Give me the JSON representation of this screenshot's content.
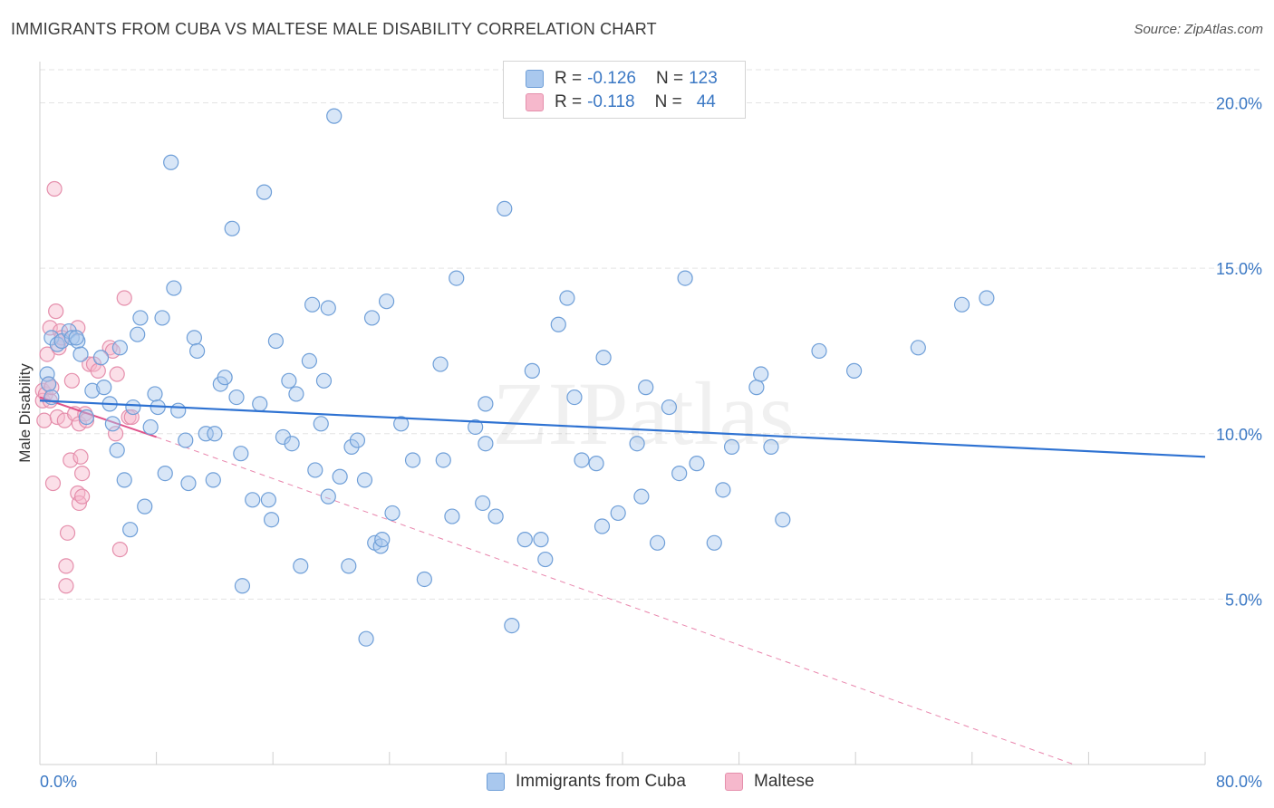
{
  "title": "IMMIGRANTS FROM CUBA VS MALTESE MALE DISABILITY CORRELATION CHART",
  "source": "Source: ZipAtlas.com",
  "watermark": "ZIPatlas",
  "legend_top": [
    {
      "r_label": "R =",
      "r_value": "-0.126",
      "n_label": "N =",
      "n_value": "123"
    },
    {
      "r_label": "R =",
      "r_value": "-0.118",
      "n_label": "N =",
      "n_value": "44"
    }
  ],
  "x_tick_labels": {
    "left": "0.0%",
    "right": "80.0%"
  },
  "colors": {
    "cuba_fill": "#a9c8ee",
    "cuba_stroke": "#6f9fd8",
    "cuba_line": "#2e72d2",
    "maltese_fill": "#f6b8cc",
    "maltese_stroke": "#e58fac",
    "maltese_line": "#e0528a",
    "axis_text": "#3b78c4",
    "grid": "#e3e3e3"
  },
  "chart_data": {
    "type": "scatter",
    "title": "IMMIGRANTS FROM CUBA VS MALTESE MALE DISABILITY CORRELATION CHART",
    "xlabel": "",
    "ylabel": "Male Disability",
    "xlim": [
      0,
      80
    ],
    "ylim": [
      0,
      21
    ],
    "y_ticks": [
      5,
      10,
      15,
      20
    ],
    "y_tick_labels": [
      "5.0%",
      "10.0%",
      "15.0%",
      "20.0%"
    ],
    "x_tick_labels": [
      "0.0%",
      "80.0%"
    ],
    "grid": "horizontal dashed",
    "legend_placement": "top-center and bottom",
    "series": [
      {
        "name": "Immigrants from Cuba",
        "r": -0.126,
        "n": 123,
        "trend": {
          "x": [
            0,
            80
          ],
          "y": [
            11.0,
            9.3
          ],
          "style": "solid"
        },
        "points": [
          [
            0.5,
            11.8
          ],
          [
            0.6,
            11.5
          ],
          [
            0.8,
            12.9
          ],
          [
            0.8,
            11.1
          ],
          [
            1.2,
            12.7
          ],
          [
            1.5,
            12.8
          ],
          [
            2.0,
            13.1
          ],
          [
            2.2,
            12.9
          ],
          [
            2.6,
            12.8
          ],
          [
            2.8,
            12.4
          ],
          [
            3.2,
            10.5
          ],
          [
            3.6,
            11.3
          ],
          [
            4.2,
            12.3
          ],
          [
            4.4,
            11.4
          ],
          [
            4.8,
            10.9
          ],
          [
            5.0,
            10.3
          ],
          [
            5.5,
            12.6
          ],
          [
            5.3,
            9.5
          ],
          [
            5.8,
            8.6
          ],
          [
            6.2,
            7.1
          ],
          [
            6.4,
            10.8
          ],
          [
            6.7,
            13.0
          ],
          [
            6.9,
            13.5
          ],
          [
            7.2,
            7.8
          ],
          [
            7.6,
            10.2
          ],
          [
            7.9,
            11.2
          ],
          [
            8.1,
            10.8
          ],
          [
            8.4,
            13.5
          ],
          [
            8.6,
            8.8
          ],
          [
            9.0,
            18.2
          ],
          [
            9.2,
            14.4
          ],
          [
            9.5,
            10.7
          ],
          [
            10.0,
            9.8
          ],
          [
            10.2,
            8.5
          ],
          [
            10.6,
            12.9
          ],
          [
            10.8,
            12.5
          ],
          [
            11.4,
            10.0
          ],
          [
            11.9,
            8.6
          ],
          [
            12.0,
            10.0
          ],
          [
            12.4,
            11.5
          ],
          [
            12.7,
            11.7
          ],
          [
            13.2,
            16.2
          ],
          [
            13.5,
            11.1
          ],
          [
            13.9,
            5.4
          ],
          [
            13.8,
            9.4
          ],
          [
            14.6,
            8.0
          ],
          [
            15.1,
            10.9
          ],
          [
            15.4,
            17.3
          ],
          [
            15.7,
            8.0
          ],
          [
            15.9,
            7.4
          ],
          [
            16.2,
            12.8
          ],
          [
            16.7,
            9.9
          ],
          [
            17.1,
            11.6
          ],
          [
            17.3,
            9.7
          ],
          [
            17.6,
            11.2
          ],
          [
            17.9,
            6.0
          ],
          [
            18.5,
            12.2
          ],
          [
            18.7,
            13.9
          ],
          [
            18.9,
            8.9
          ],
          [
            19.3,
            10.3
          ],
          [
            19.5,
            11.6
          ],
          [
            19.8,
            13.8
          ],
          [
            19.8,
            8.1
          ],
          [
            20.6,
            8.7
          ],
          [
            21.2,
            6.0
          ],
          [
            20.2,
            19.6
          ],
          [
            21.4,
            9.6
          ],
          [
            21.8,
            9.8
          ],
          [
            22.3,
            8.6
          ],
          [
            22.4,
            3.8
          ],
          [
            22.8,
            13.5
          ],
          [
            23.0,
            6.7
          ],
          [
            23.4,
            6.6
          ],
          [
            23.5,
            6.8
          ],
          [
            23.8,
            14.0
          ],
          [
            24.2,
            7.6
          ],
          [
            24.8,
            10.3
          ],
          [
            25.6,
            9.2
          ],
          [
            26.4,
            5.6
          ],
          [
            27.5,
            12.1
          ],
          [
            27.7,
            9.2
          ],
          [
            28.3,
            7.5
          ],
          [
            28.6,
            14.7
          ],
          [
            29.9,
            10.2
          ],
          [
            30.4,
            7.9
          ],
          [
            30.6,
            10.9
          ],
          [
            30.6,
            9.7
          ],
          [
            31.3,
            7.5
          ],
          [
            31.9,
            16.8
          ],
          [
            32.4,
            4.2
          ],
          [
            33.3,
            6.8
          ],
          [
            33.8,
            11.9
          ],
          [
            34.4,
            6.8
          ],
          [
            34.7,
            6.2
          ],
          [
            35.6,
            13.3
          ],
          [
            36.2,
            14.1
          ],
          [
            36.7,
            11.1
          ],
          [
            37.2,
            9.2
          ],
          [
            38.2,
            9.1
          ],
          [
            38.7,
            12.3
          ],
          [
            38.6,
            7.2
          ],
          [
            39.7,
            7.6
          ],
          [
            41.0,
            9.7
          ],
          [
            41.3,
            8.1
          ],
          [
            41.6,
            11.4
          ],
          [
            42.4,
            6.7
          ],
          [
            43.2,
            10.8
          ],
          [
            43.9,
            8.8
          ],
          [
            44.3,
            14.7
          ],
          [
            45.1,
            9.1
          ],
          [
            46.3,
            6.7
          ],
          [
            46.9,
            8.3
          ],
          [
            47.5,
            9.6
          ],
          [
            49.2,
            11.4
          ],
          [
            49.5,
            11.8
          ],
          [
            50.2,
            9.6
          ],
          [
            51.0,
            7.4
          ],
          [
            53.5,
            12.5
          ],
          [
            55.9,
            11.9
          ],
          [
            60.3,
            12.6
          ],
          [
            63.3,
            13.9
          ],
          [
            65.0,
            14.1
          ],
          [
            2.5,
            12.9
          ]
        ]
      },
      {
        "name": "Maltese",
        "r": -0.118,
        "n": 44,
        "trend": {
          "x": [
            0,
            8
          ],
          "y": [
            11.1,
            9.9
          ],
          "style": "solid",
          "extension": {
            "x": [
              8,
              71
            ],
            "y": [
              9.9,
              0.0
            ],
            "style": "dashed"
          }
        },
        "points": [
          [
            0.2,
            11.3
          ],
          [
            0.2,
            11.0
          ],
          [
            0.3,
            10.4
          ],
          [
            0.4,
            11.2
          ],
          [
            0.6,
            11.5
          ],
          [
            0.5,
            12.4
          ],
          [
            0.7,
            13.2
          ],
          [
            0.7,
            11.0
          ],
          [
            0.9,
            8.5
          ],
          [
            1.0,
            17.4
          ],
          [
            1.1,
            13.7
          ],
          [
            1.2,
            10.5
          ],
          [
            1.3,
            12.6
          ],
          [
            1.4,
            13.1
          ],
          [
            1.5,
            12.8
          ],
          [
            1.5,
            12.9
          ],
          [
            1.7,
            10.4
          ],
          [
            1.8,
            5.4
          ],
          [
            1.8,
            6.0
          ],
          [
            1.9,
            7.0
          ],
          [
            2.1,
            9.2
          ],
          [
            2.2,
            11.6
          ],
          [
            2.4,
            10.6
          ],
          [
            2.6,
            13.2
          ],
          [
            2.6,
            8.2
          ],
          [
            2.7,
            7.9
          ],
          [
            2.7,
            10.3
          ],
          [
            2.8,
            9.3
          ],
          [
            2.9,
            8.8
          ],
          [
            2.9,
            8.1
          ],
          [
            3.1,
            10.6
          ],
          [
            3.2,
            10.4
          ],
          [
            3.4,
            12.1
          ],
          [
            3.7,
            12.1
          ],
          [
            4.0,
            11.9
          ],
          [
            4.8,
            12.6
          ],
          [
            5.2,
            10.0
          ],
          [
            5.3,
            11.8
          ],
          [
            5.5,
            6.5
          ],
          [
            5.8,
            14.1
          ],
          [
            6.1,
            10.5
          ],
          [
            6.3,
            10.5
          ],
          [
            5.0,
            12.5
          ],
          [
            0.8,
            11.4
          ]
        ]
      }
    ]
  }
}
